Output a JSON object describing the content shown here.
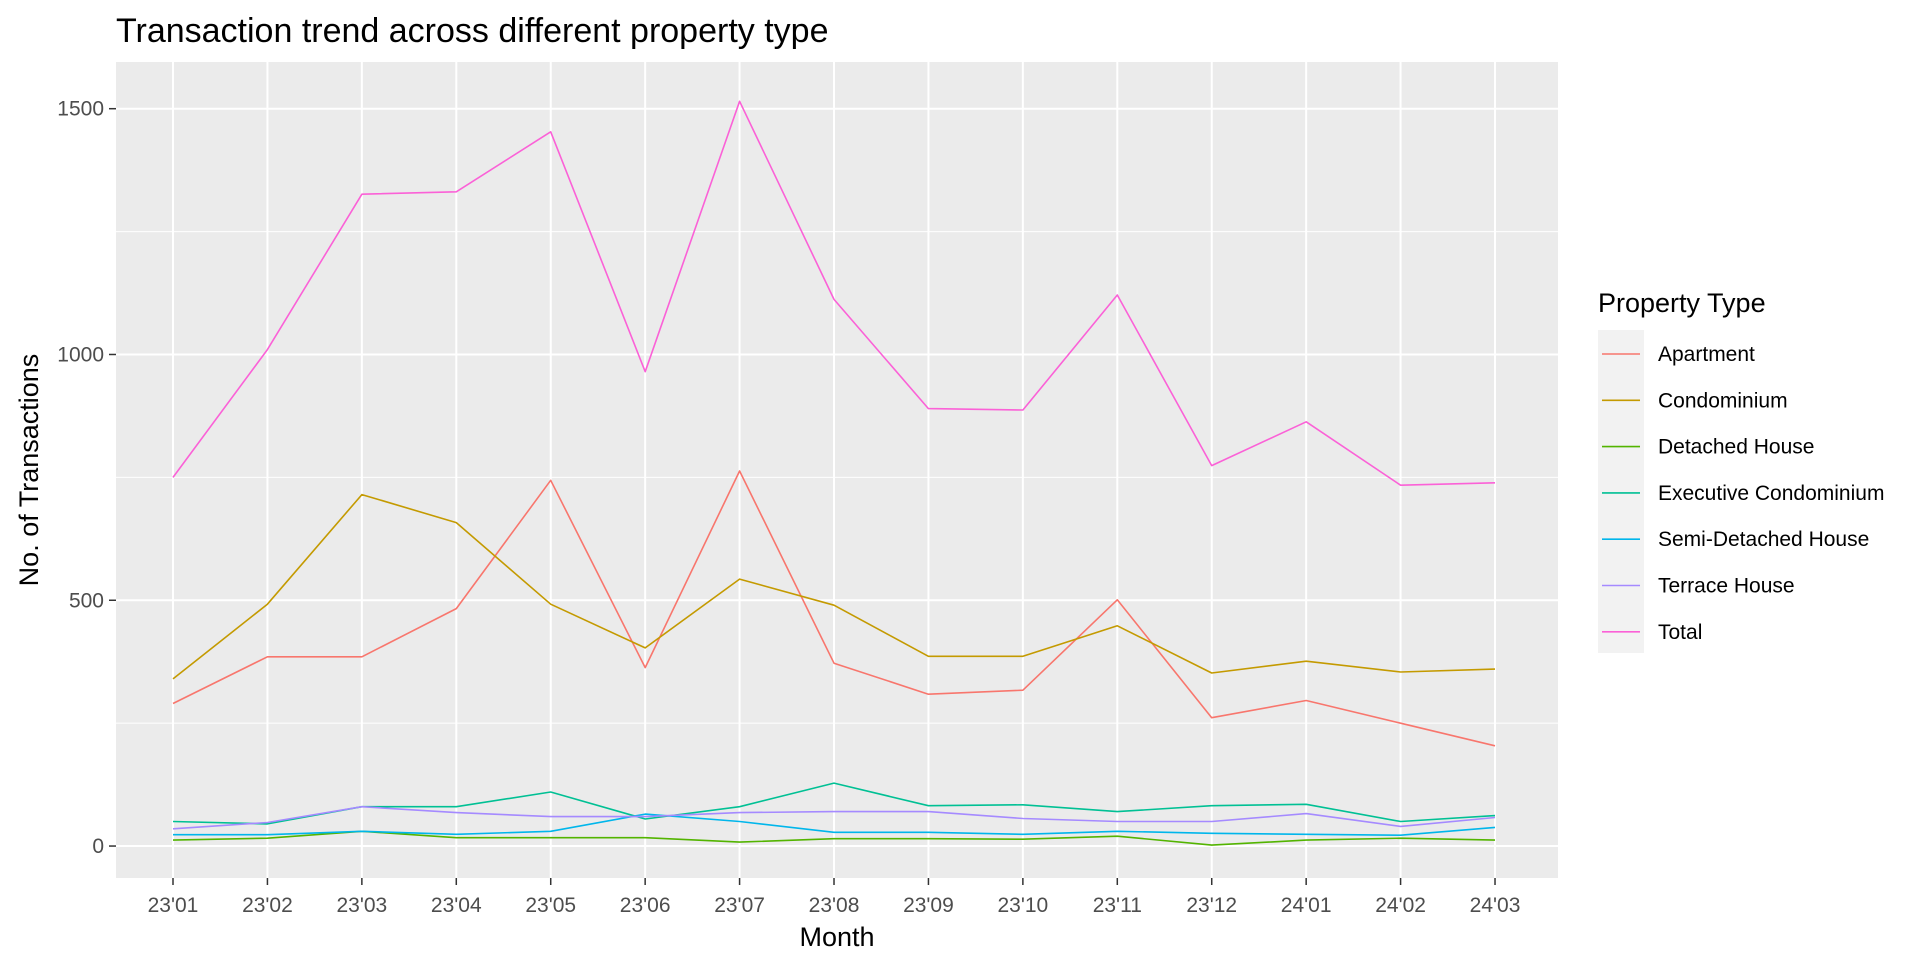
{
  "chart_data": {
    "type": "line",
    "title": "Transaction trend across different property type",
    "xlabel": "Month",
    "ylabel": "No. of Transactions",
    "categories": [
      "23'01",
      "23'02",
      "23'03",
      "23'04",
      "23'05",
      "23'06",
      "23'07",
      "23'08",
      "23'09",
      "23'10",
      "23'11",
      "23'12",
      "24'01",
      "24'02",
      "24'03"
    ],
    "yticks": [
      0,
      500,
      1000,
      1500
    ],
    "ylim": [
      -65,
      1595
    ],
    "grid": true,
    "legend": {
      "title": "Property Type",
      "position": "right"
    },
    "series": [
      {
        "name": "Apartment",
        "color": "#F8766D",
        "values": [
          290,
          385,
          385,
          483,
          744,
          363,
          763,
          372,
          309,
          317,
          501,
          261,
          296,
          250,
          204
        ]
      },
      {
        "name": "Condominium",
        "color": "#C49A00",
        "values": [
          340,
          492,
          715,
          658,
          492,
          403,
          543,
          490,
          386,
          386,
          448,
          352,
          376,
          354,
          360
        ]
      },
      {
        "name": "Detached House",
        "color": "#53B400",
        "values": [
          12,
          16,
          30,
          17,
          17,
          17,
          8,
          15,
          15,
          14,
          20,
          2,
          12,
          16,
          12
        ]
      },
      {
        "name": "Executive Condominium",
        "color": "#00C094",
        "values": [
          50,
          45,
          80,
          80,
          110,
          55,
          80,
          128,
          82,
          84,
          70,
          82,
          85,
          50,
          62
        ]
      },
      {
        "name": "Semi-Detached House",
        "color": "#00B6EB",
        "values": [
          23,
          23,
          30,
          24,
          30,
          65,
          50,
          28,
          28,
          24,
          30,
          26,
          24,
          22,
          38
        ]
      },
      {
        "name": "Terrace House",
        "color": "#A58AFF",
        "values": [
          35,
          48,
          80,
          68,
          60,
          60,
          68,
          70,
          70,
          56,
          50,
          50,
          66,
          40,
          58
        ]
      },
      {
        "name": "Total",
        "color": "#FB61D7",
        "values": [
          750,
          1010,
          1326,
          1331,
          1453,
          965,
          1515,
          1112,
          890,
          887,
          1121,
          774,
          863,
          734,
          739
        ]
      }
    ]
  }
}
